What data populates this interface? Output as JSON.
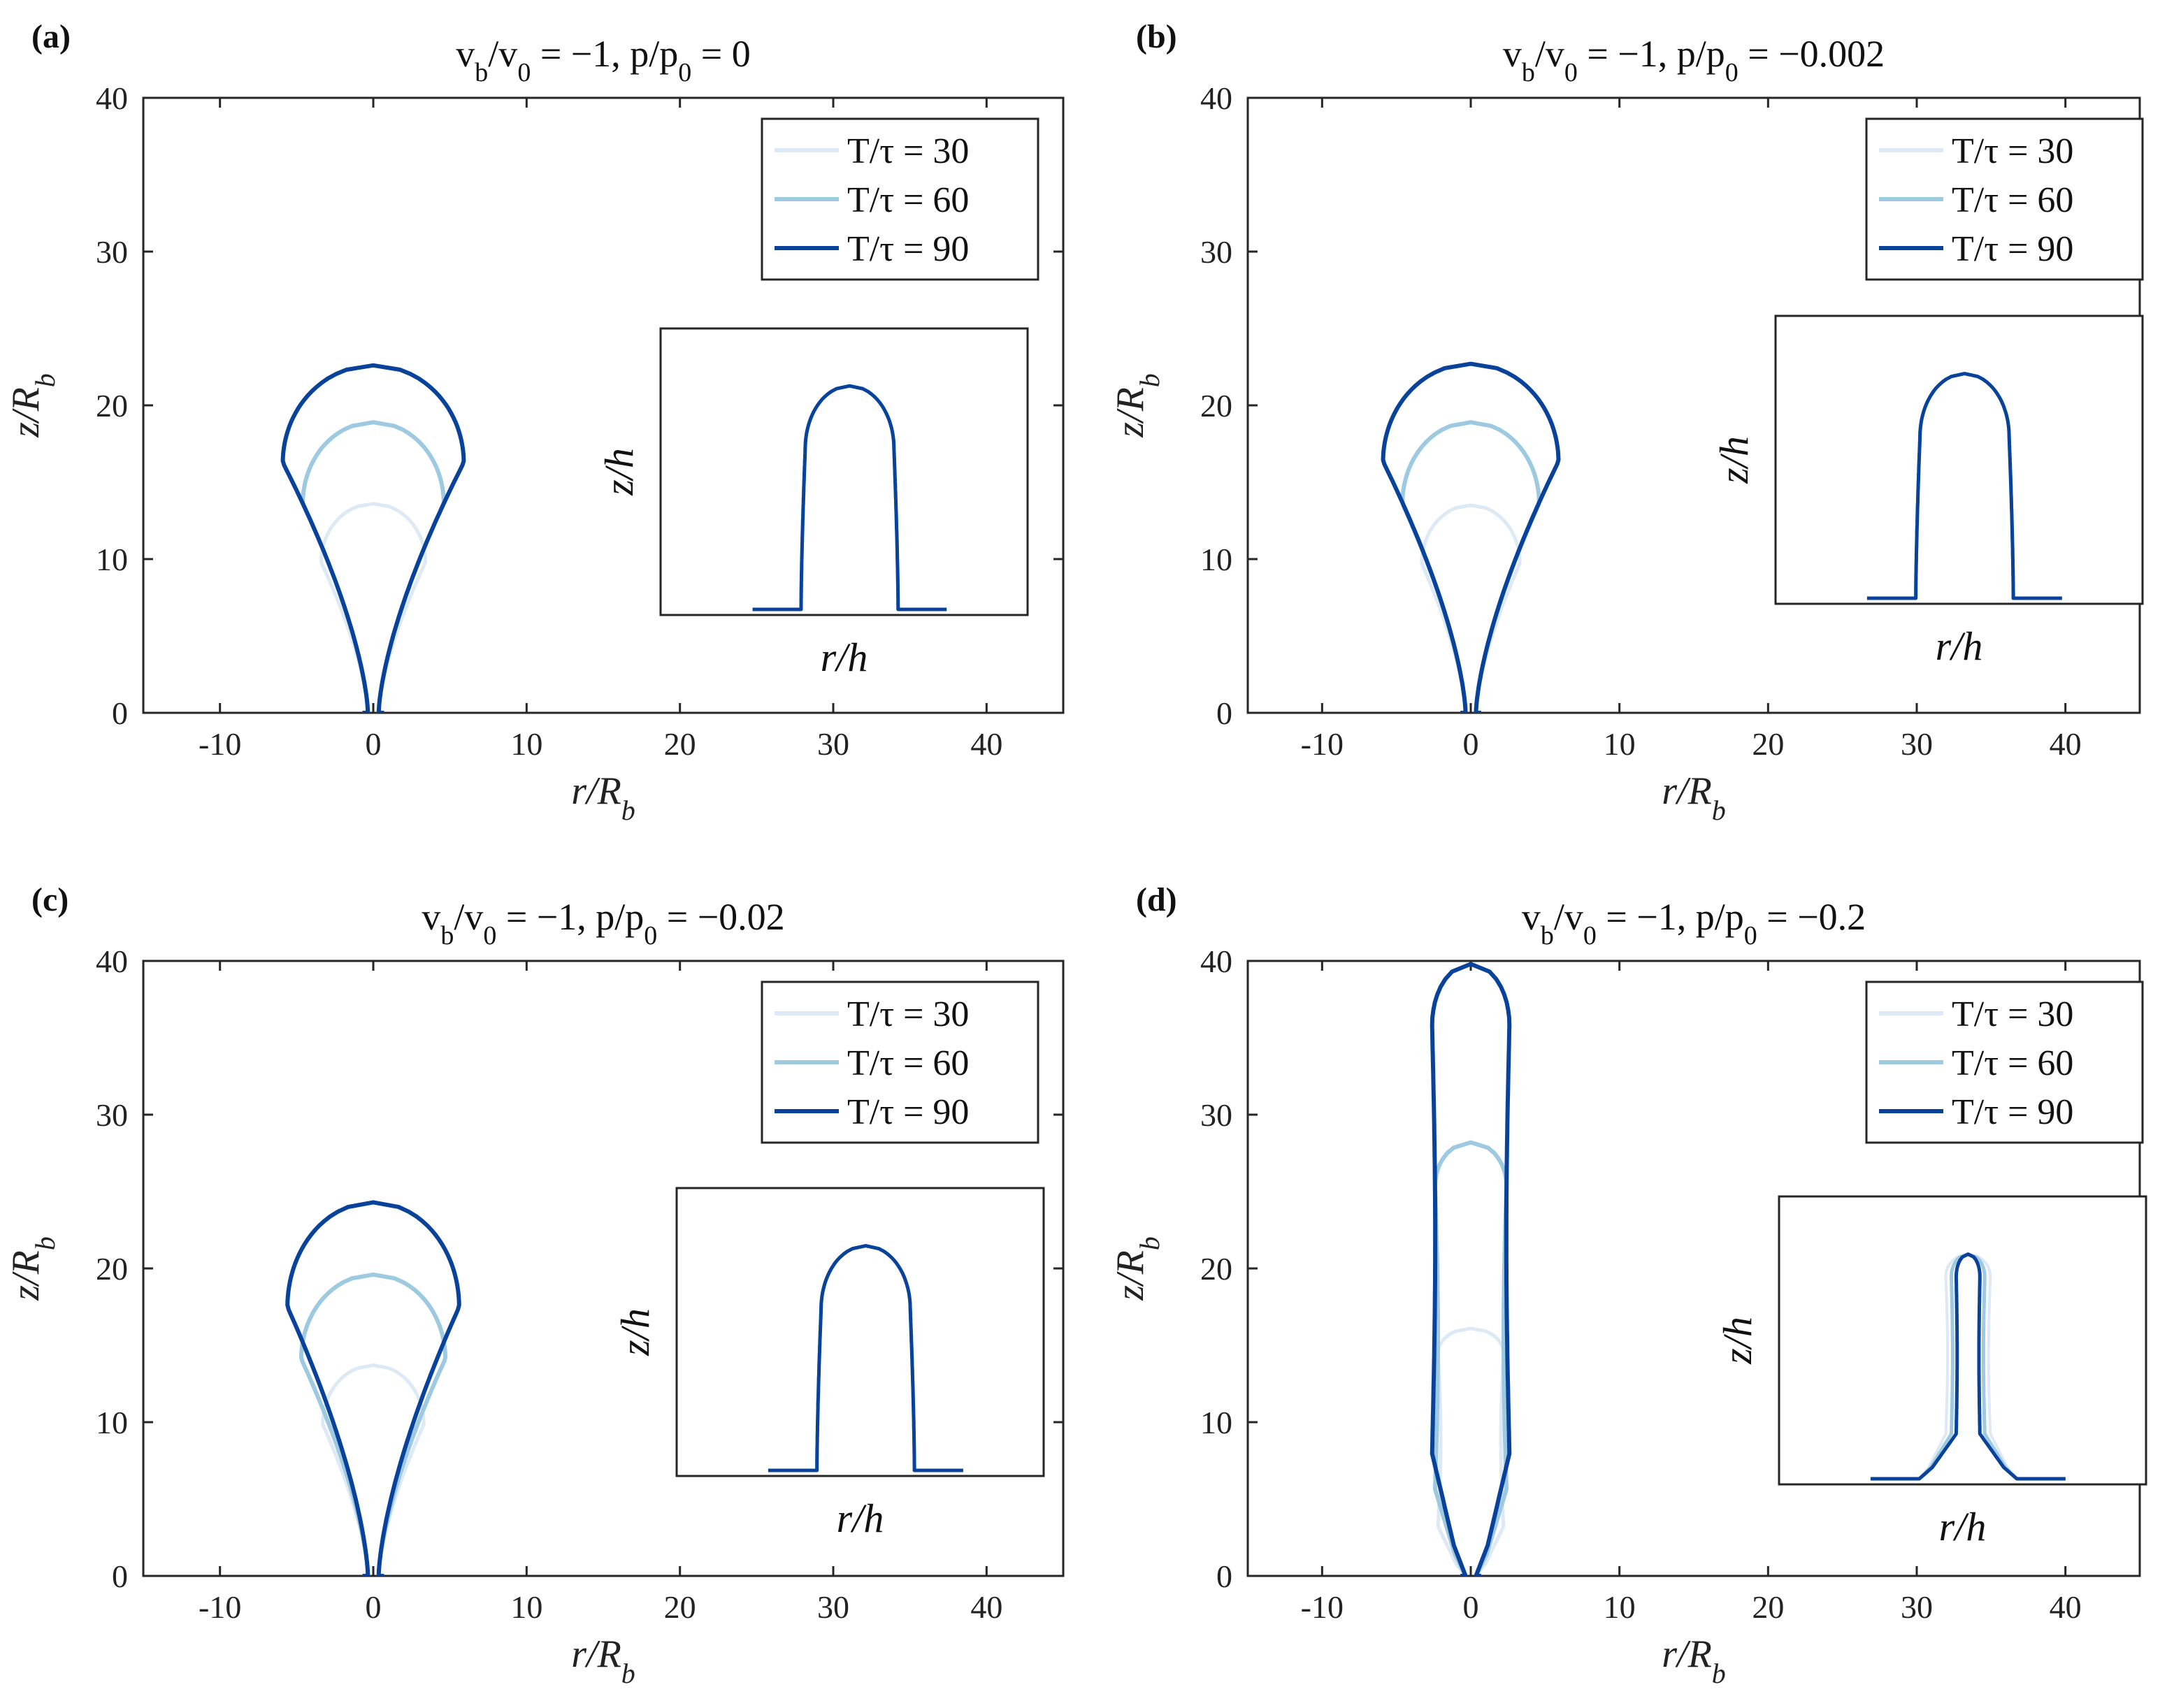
{
  "figure": {
    "series_colors": [
      "#dde9f5",
      "#9ecae1",
      "#08429b"
    ],
    "legend_labels": [
      "T/τ = 30",
      "T/τ = 60",
      "T/τ = 90"
    ]
  },
  "chart_data": [
    {
      "type": "line",
      "panel": "(a)",
      "title": "v_b/v_0 = −1, p/p_0 = 0",
      "xlabel": "r/R_b",
      "ylabel": "z/R_b",
      "xlim": [
        -15,
        45
      ],
      "ylim": [
        0,
        40
      ],
      "xticks": [
        "-10",
        "0",
        "10",
        "20",
        "30",
        "40"
      ],
      "yticks": [
        "0",
        "10",
        "20",
        "30",
        "40"
      ],
      "legend_position": "top-right",
      "grid": false,
      "series": [
        {
          "name": "T/τ = 30",
          "shape": "drop",
          "height": 13.6,
          "max_radius": 3.4
        },
        {
          "name": "T/τ = 60",
          "shape": "drop",
          "height": 18.9,
          "max_radius": 4.6
        },
        {
          "name": "T/τ = 90",
          "shape": "drop",
          "height": 22.6,
          "max_radius": 5.9
        }
      ],
      "inset": {
        "xlabel": "r/h",
        "ylabel": "z/h",
        "shape": "drop"
      }
    },
    {
      "type": "line",
      "panel": "(b)",
      "title": "v_b/v_0 = −1, p/p_0 = −0.002",
      "xlabel": "r/R_b",
      "ylabel": "z/R_b",
      "xlim": [
        -15,
        45
      ],
      "ylim": [
        0,
        40
      ],
      "xticks": [
        "-10",
        "0",
        "10",
        "20",
        "30",
        "40"
      ],
      "yticks": [
        "0",
        "10",
        "20",
        "30",
        "40"
      ],
      "legend_position": "top-right",
      "grid": false,
      "series": [
        {
          "name": "T/τ = 30",
          "shape": "drop",
          "height": 13.5,
          "max_radius": 3.3
        },
        {
          "name": "T/τ = 60",
          "shape": "drop",
          "height": 18.9,
          "max_radius": 4.6
        },
        {
          "name": "T/τ = 90",
          "shape": "drop",
          "height": 22.7,
          "max_radius": 5.9
        }
      ],
      "inset": {
        "xlabel": "r/h",
        "ylabel": "z/h",
        "shape": "drop"
      }
    },
    {
      "type": "line",
      "panel": "(c)",
      "title": "v_b/v_0 = −1, p/p_0 = −0.02",
      "xlabel": "r/R_b",
      "ylabel": "z/R_b",
      "xlim": [
        -15,
        45
      ],
      "ylim": [
        0,
        40
      ],
      "xticks": [
        "-10",
        "0",
        "10",
        "20",
        "30",
        "40"
      ],
      "yticks": [
        "0",
        "10",
        "20",
        "30",
        "40"
      ],
      "legend_position": "top-right",
      "grid": false,
      "series": [
        {
          "name": "T/τ = 30",
          "shape": "drop",
          "height": 13.7,
          "max_radius": 3.3
        },
        {
          "name": "T/τ = 60",
          "shape": "drop",
          "height": 19.6,
          "max_radius": 4.7
        },
        {
          "name": "T/τ = 90",
          "shape": "drop",
          "height": 24.3,
          "max_radius": 5.6
        }
      ],
      "inset": {
        "xlabel": "r/h",
        "ylabel": "z/h",
        "shape": "drop"
      }
    },
    {
      "type": "line",
      "panel": "(d)",
      "title": "v_b/v_0 = −1, p/p_0 = −0.2",
      "xlabel": "r/R_b",
      "ylabel": "z/R_b",
      "xlim": [
        -15,
        45
      ],
      "ylim": [
        0,
        40
      ],
      "xticks": [
        "-10",
        "0",
        "10",
        "20",
        "30",
        "40"
      ],
      "yticks": [
        "0",
        "10",
        "20",
        "30",
        "40"
      ],
      "legend_position": "top-right",
      "grid": false,
      "series": [
        {
          "name": "T/τ = 30",
          "shape": "column",
          "height": 16.1,
          "max_radius": 2.2
        },
        {
          "name": "T/τ = 60",
          "shape": "column",
          "height": 28.2,
          "max_radius": 2.4
        },
        {
          "name": "T/τ = 90",
          "shape": "column",
          "height": 39.8,
          "max_radius": 2.6
        }
      ],
      "inset": {
        "xlabel": "r/h",
        "ylabel": "z/h",
        "shape": "column"
      }
    }
  ]
}
